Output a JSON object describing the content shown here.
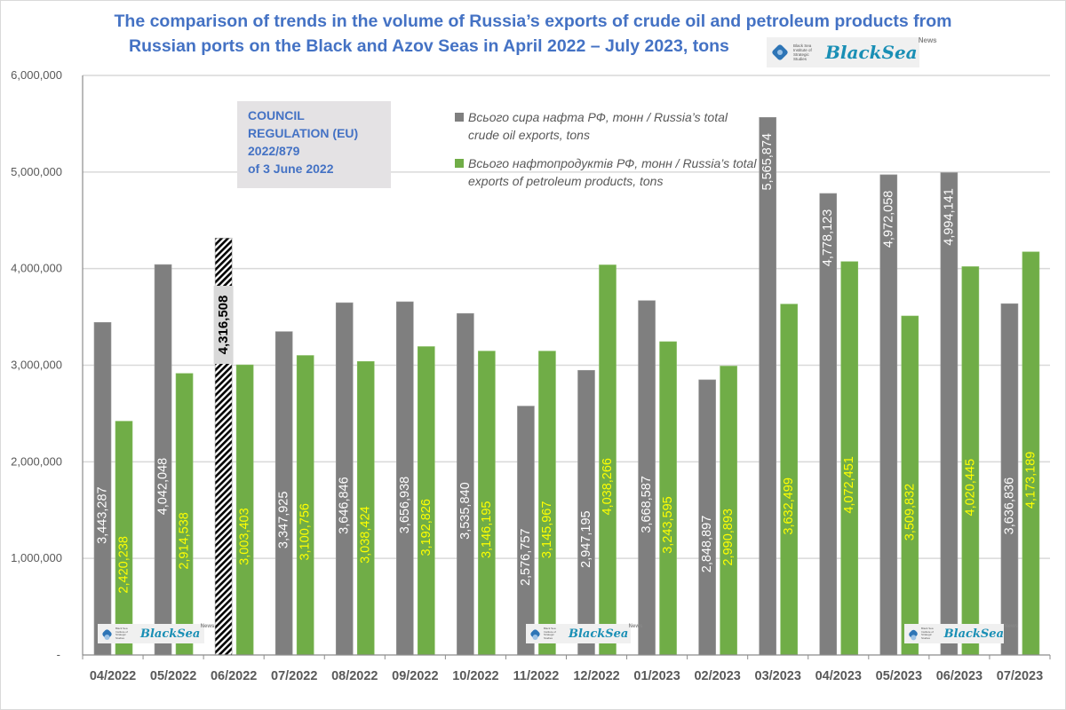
{
  "title": "The comparison of trends in the volume of Russia’s exports of crude oil and petroleum products from Russian ports on the Black and Azov Seas in April 2022 – July 2023, tons",
  "title_lines": [
    "The comparison of trends in the volume of Russia’s exports of crude oil and petroleum products from",
    "Russian ports on the Black and Azov Seas in April 2022 – July 2023, tons"
  ],
  "logo": {
    "institute_text": "Black Sea Institute of Strategic Studies",
    "brand": "BlackSea",
    "superscript": "News",
    "icon": "wave-diamond-icon"
  },
  "annotation": {
    "text": "COUNCIL\nREGULATION (EU)\n2022/879\nof 3 June 2022"
  },
  "colors": {
    "crude": "#7f7f7f",
    "products": "#70ad47",
    "crude_label": "#ffffff",
    "products_label": "#ffff00",
    "title": "#4472c4",
    "grid": "#d9d9d9"
  },
  "chart_data": {
    "type": "bar",
    "title": "The comparison of trends in the volume of Russia’s exports of crude oil and petroleum products from Russian ports on the Black and Azov Seas in April 2022 – July 2023, tons",
    "xlabel": "",
    "ylabel": "",
    "ylim": [
      0,
      6000000
    ],
    "yticks": [
      0,
      1000000,
      2000000,
      3000000,
      4000000,
      5000000,
      6000000
    ],
    "ytick_labels": [
      "-",
      "1,000,000",
      "2,000,000",
      "3,000,000",
      "4,000,000",
      "5,000,000",
      "6,000,000"
    ],
    "grid": true,
    "legend_position": "top-center",
    "categories": [
      "04/2022",
      "05/2022",
      "06/2022",
      "07/2022",
      "08/2022",
      "09/2022",
      "10/2022",
      "11/2022",
      "12/2022",
      "01/2023",
      "02/2023",
      "03/2023",
      "04/2023",
      "05/2023",
      "06/2023",
      "07/2023"
    ],
    "series": [
      {
        "name": "Всього сира нафта РФ, тонн / Russia’s total crude oil exports, tons",
        "values": [
          3443287,
          4042048,
          4316508,
          3347925,
          3646846,
          3656938,
          3535840,
          2576757,
          2947195,
          3668587,
          2848897,
          5565874,
          4778123,
          4972058,
          4994141,
          3636836
        ],
        "labels": [
          "3,443,287",
          "4,042,048",
          "4,316,508",
          "3,347,925",
          "3,646,846",
          "3,656,938",
          "3,535,840",
          "2,576,757",
          "2,947,195",
          "3,668,587",
          "2,848,897",
          "5,565,874",
          "4,778,123",
          "4,972,058",
          "4,994,141",
          "3,636,836"
        ],
        "highlight_index": 2,
        "highlight_style": "hatched"
      },
      {
        "name": "Всього нафтопродуктів РФ, тонн / Russia’s total exports of petroleum products, tons",
        "values": [
          2420238,
          2914538,
          3003403,
          3100756,
          3038424,
          3192826,
          3146195,
          3145967,
          4038266,
          3243595,
          2990893,
          3632499,
          4072451,
          3509832,
          4020445,
          4173189
        ],
        "labels": [
          "2,420,238",
          "2,914,538",
          "3,003,403",
          "3,100,756",
          "3,038,424",
          "3,192,826",
          "3,146,195",
          "3,145,967",
          "4,038,266",
          "3,243,595",
          "2,990,893",
          "3,632,499",
          "4,072,451",
          "3,509,832",
          "4,020,445",
          "4,173,189"
        ]
      }
    ]
  }
}
